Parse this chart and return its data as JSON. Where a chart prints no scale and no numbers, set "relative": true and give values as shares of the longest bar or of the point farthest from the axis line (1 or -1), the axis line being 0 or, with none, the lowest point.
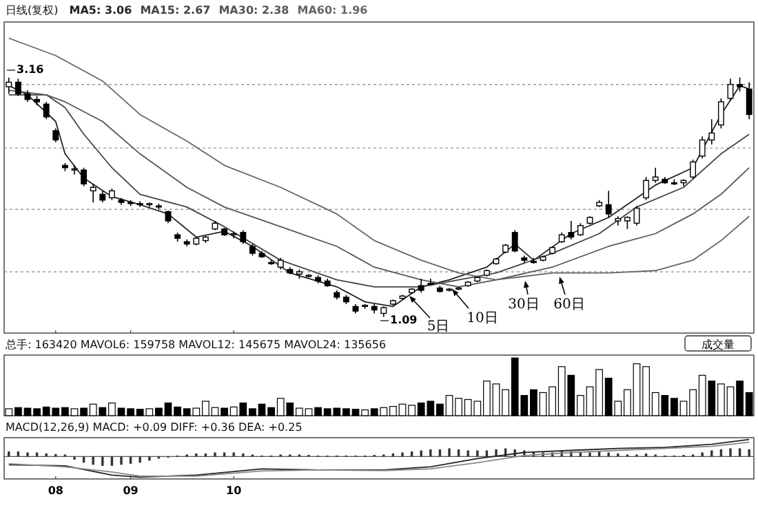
{
  "chart_data": [
    {
      "type": "candlestick",
      "title": "日线(复权)",
      "legend": "top left",
      "tick_labels": false,
      "grid": "y",
      "categories": [
        null,
        null,
        null,
        null,
        null,
        "08",
        null,
        null,
        null,
        null,
        null,
        null,
        null,
        "09",
        null,
        null,
        null,
        null,
        null,
        null,
        null,
        null,
        null,
        null,
        "10",
        null,
        null,
        null,
        null,
        null,
        null,
        null,
        null,
        null,
        null,
        null,
        null,
        null,
        null,
        null,
        null,
        null,
        null,
        null,
        null,
        null,
        null,
        null,
        null,
        null,
        null,
        null,
        null,
        null,
        null,
        null,
        null,
        null,
        null,
        null,
        null,
        null,
        null,
        null,
        null,
        null,
        null,
        null,
        null,
        null,
        null,
        null,
        null,
        null,
        null,
        null,
        null,
        null,
        null,
        null
      ],
      "ylim": [
        0.95,
        3.64
      ],
      "yticks": [
        {
          "value": 3.1,
          "label": null
        },
        {
          "value": 2.55,
          "label": null
        },
        {
          "value": 2.02,
          "label": null
        },
        {
          "value": 1.48,
          "label": null
        }
      ],
      "ohlc": [
        [
          3.08,
          3.16,
          3.02,
          3.12
        ],
        [
          3.12,
          3.15,
          3.0,
          3.02
        ],
        [
          3.02,
          3.05,
          2.95,
          2.97
        ],
        [
          2.97,
          3.0,
          2.92,
          2.95
        ],
        [
          2.93,
          2.95,
          2.8,
          2.82
        ],
        [
          2.7,
          2.72,
          2.6,
          2.62
        ],
        [
          2.4,
          2.42,
          2.35,
          2.38
        ],
        [
          2.36,
          2.4,
          2.32,
          2.37
        ],
        [
          2.36,
          2.38,
          2.22,
          2.24
        ],
        [
          2.18,
          2.24,
          2.08,
          2.21
        ],
        [
          2.15,
          2.18,
          2.08,
          2.1
        ],
        [
          2.12,
          2.2,
          2.1,
          2.18
        ],
        [
          2.1,
          2.12,
          2.06,
          2.08
        ],
        [
          2.08,
          2.1,
          2.05,
          2.07
        ],
        [
          2.07,
          2.09,
          2.04,
          2.06
        ],
        [
          2.06,
          2.08,
          2.04,
          2.07
        ],
        [
          2.05,
          2.07,
          2.02,
          2.04
        ],
        [
          2.0,
          2.01,
          1.9,
          1.92
        ],
        [
          1.8,
          1.82,
          1.74,
          1.77
        ],
        [
          1.74,
          1.76,
          1.7,
          1.72
        ],
        [
          1.72,
          1.78,
          1.71,
          1.77
        ],
        [
          1.75,
          1.79,
          1.73,
          1.78
        ],
        [
          1.85,
          1.92,
          1.84,
          1.9
        ],
        [
          1.85,
          1.86,
          1.79,
          1.8
        ],
        [
          1.8,
          1.83,
          1.77,
          1.81
        ],
        [
          1.82,
          1.84,
          1.72,
          1.74
        ],
        [
          1.7,
          1.72,
          1.62,
          1.64
        ],
        [
          1.64,
          1.66,
          1.6,
          1.61
        ],
        [
          1.56,
          1.58,
          1.54,
          1.55
        ],
        [
          1.52,
          1.6,
          1.5,
          1.58
        ],
        [
          1.5,
          1.52,
          1.46,
          1.47
        ],
        [
          1.46,
          1.5,
          1.42,
          1.48
        ],
        [
          1.44,
          1.46,
          1.43,
          1.45
        ],
        [
          1.43,
          1.45,
          1.38,
          1.4
        ],
        [
          1.4,
          1.42,
          1.35,
          1.36
        ],
        [
          1.3,
          1.32,
          1.24,
          1.26
        ],
        [
          1.26,
          1.28,
          1.2,
          1.22
        ],
        [
          1.18,
          1.2,
          1.12,
          1.14
        ],
        [
          1.18,
          1.2,
          1.16,
          1.19
        ],
        [
          1.18,
          1.2,
          1.12,
          1.15
        ],
        [
          1.12,
          1.18,
          1.09,
          1.17
        ],
        [
          1.2,
          1.24,
          1.19,
          1.23
        ],
        [
          1.25,
          1.28,
          1.24,
          1.27
        ],
        [
          1.3,
          1.34,
          1.29,
          1.33
        ],
        [
          1.36,
          1.42,
          1.3,
          1.32
        ],
        [
          1.38,
          1.42,
          1.36,
          1.37
        ],
        [
          1.34,
          1.36,
          1.3,
          1.31
        ],
        [
          1.32,
          1.34,
          1.31,
          1.33
        ],
        [
          1.33,
          1.35,
          1.32,
          1.34
        ],
        [
          1.36,
          1.4,
          1.35,
          1.39
        ],
        [
          1.4,
          1.44,
          1.39,
          1.43
        ],
        [
          1.45,
          1.5,
          1.44,
          1.49
        ],
        [
          1.55,
          1.6,
          1.54,
          1.59
        ],
        [
          1.65,
          1.72,
          1.64,
          1.71
        ],
        [
          1.82,
          1.84,
          1.65,
          1.66
        ],
        [
          1.6,
          1.62,
          1.56,
          1.58
        ],
        [
          1.57,
          1.6,
          1.55,
          1.56
        ],
        [
          1.58,
          1.62,
          1.57,
          1.61
        ],
        [
          1.64,
          1.7,
          1.63,
          1.69
        ],
        [
          1.74,
          1.82,
          1.73,
          1.8
        ],
        [
          1.82,
          1.92,
          1.76,
          1.78
        ],
        [
          1.8,
          1.9,
          1.79,
          1.88
        ],
        [
          1.9,
          1.96,
          1.89,
          1.95
        ],
        [
          2.05,
          2.1,
          2.04,
          2.08
        ],
        [
          2.06,
          2.18,
          1.95,
          1.98
        ],
        [
          1.92,
          1.96,
          1.88,
          1.94
        ],
        [
          1.92,
          1.96,
          1.85,
          1.95
        ],
        [
          1.9,
          2.05,
          1.88,
          2.03
        ],
        [
          2.12,
          2.3,
          2.1,
          2.27
        ],
        [
          2.27,
          2.38,
          2.25,
          2.3
        ],
        [
          2.28,
          2.3,
          2.24,
          2.25
        ],
        [
          2.25,
          2.28,
          2.23,
          2.24
        ],
        [
          2.25,
          2.28,
          2.22,
          2.27
        ],
        [
          2.3,
          2.45,
          2.28,
          2.43
        ],
        [
          2.48,
          2.65,
          2.46,
          2.62
        ],
        [
          2.62,
          2.8,
          2.58,
          2.68
        ],
        [
          2.75,
          2.98,
          2.72,
          2.95
        ],
        [
          2.98,
          3.15,
          2.96,
          3.1
        ],
        [
          3.1,
          3.16,
          3.04,
          3.08
        ],
        [
          3.06,
          3.12,
          2.8,
          2.84
        ]
      ],
      "series": [
        {
          "name": "MA5: 3.06",
          "type": "line",
          "color": "#222222",
          "values": [
            3.09,
            null,
            3.01,
            null,
            null,
            2.78,
            2.5,
            null,
            2.29,
            null,
            null,
            2.13,
            null,
            null,
            2.06,
            null,
            null,
            1.98,
            null,
            null,
            1.78,
            null,
            null,
            1.83,
            null,
            null,
            1.7,
            null,
            null,
            null,
            1.47,
            null,
            null,
            null,
            null,
            1.35,
            null,
            null,
            1.22,
            null,
            null,
            1.18,
            null,
            null,
            1.35,
            null,
            null,
            1.41,
            null,
            null,
            null,
            1.52,
            null,
            null,
            1.72,
            null,
            1.58,
            null,
            null,
            null,
            1.81,
            null,
            null,
            null,
            1.95,
            null,
            null,
            null,
            null,
            2.23,
            null,
            null,
            null,
            2.38,
            null,
            null,
            2.84,
            null,
            3.09,
            3.06
          ]
        },
        {
          "name": "MA15: 2.67",
          "type": "line",
          "color": "#444444",
          "values": [
            3.01,
            null,
            null,
            null,
            3.01,
            null,
            2.9,
            null,
            2.67,
            null,
            null,
            2.38,
            null,
            null,
            2.15,
            null,
            null,
            null,
            null,
            2.04,
            null,
            null,
            null,
            1.87,
            null,
            null,
            null,
            null,
            null,
            1.58,
            null,
            null,
            null,
            null,
            null,
            1.41,
            null,
            null,
            null,
            1.35,
            null,
            null,
            null,
            null,
            1.35,
            null,
            null,
            null,
            1.41,
            null,
            null,
            null,
            1.47,
            null,
            null,
            null,
            null,
            null,
            1.64,
            null,
            null,
            null,
            null,
            1.81,
            null,
            null,
            null,
            2.04,
            null,
            null,
            null,
            null,
            2.21,
            null,
            null,
            null,
            2.5,
            null,
            null,
            2.67
          ]
        },
        {
          "name": "MA30: 2.38",
          "type": "line",
          "color": "#555555",
          "values": [
            3.05,
            null,
            null,
            null,
            3.01,
            null,
            2.95,
            null,
            null,
            null,
            2.78,
            null,
            null,
            null,
            2.5,
            null,
            null,
            null,
            null,
            2.21,
            null,
            null,
            null,
            2.04,
            null,
            null,
            null,
            null,
            null,
            1.87,
            null,
            null,
            null,
            null,
            null,
            1.7,
            null,
            null,
            null,
            1.52,
            null,
            null,
            null,
            null,
            1.41,
            null,
            null,
            null,
            1.35,
            null,
            null,
            null,
            1.41,
            null,
            null,
            null,
            null,
            null,
            1.52,
            null,
            null,
            null,
            null,
            null,
            1.7,
            null,
            null,
            null,
            null,
            1.81,
            null,
            null,
            null,
            1.98,
            null,
            null,
            2.15,
            null,
            null,
            2.38
          ]
        },
        {
          "name": "MA60: 1.96",
          "type": "line",
          "color": "#666666",
          "values": [
            3.5,
            null,
            null,
            null,
            null,
            3.35,
            null,
            null,
            null,
            null,
            3.13,
            null,
            null,
            null,
            2.84,
            null,
            null,
            null,
            null,
            2.61,
            null,
            null,
            null,
            2.4,
            null,
            null,
            null,
            null,
            null,
            2.21,
            null,
            null,
            null,
            null,
            null,
            1.98,
            null,
            null,
            null,
            1.75,
            null,
            null,
            null,
            null,
            1.58,
            null,
            null,
            null,
            1.47,
            null,
            null,
            null,
            1.41,
            null,
            null,
            null,
            null,
            null,
            1.47,
            null,
            null,
            null,
            null,
            null,
            1.47,
            null,
            null,
            null,
            null,
            1.49,
            null,
            null,
            null,
            1.58,
            null,
            null,
            1.75,
            null,
            null,
            1.96
          ]
        }
      ],
      "annotations": [
        "3.16",
        "1.09",
        "5日",
        "10日",
        "30日",
        "60日"
      ]
    },
    {
      "type": "bar",
      "relative": true,
      "tick_labels": false,
      "title": "总手: 163420 MAVOL6: 159758 MAVOL12: 145675 MAVOL24: 135656",
      "annotations": [
        "成交量"
      ],
      "categories": [
        null,
        null,
        null,
        null,
        null,
        "08",
        null,
        null,
        null,
        null,
        null,
        null,
        null,
        "09",
        null,
        null,
        null,
        null,
        null,
        null,
        null,
        null,
        null,
        null,
        "10",
        null,
        null,
        null,
        null,
        null,
        null,
        null,
        null,
        null,
        null,
        null,
        null,
        null,
        null,
        null,
        null,
        null,
        null,
        null,
        null,
        null,
        null,
        null,
        null,
        null,
        null,
        null,
        null,
        null,
        null,
        null,
        null,
        null,
        null,
        null,
        null,
        null,
        null,
        null,
        null,
        null,
        null,
        null,
        null,
        null,
        null,
        null,
        null,
        null,
        null,
        null,
        null,
        null,
        null,
        null
      ],
      "values": [
        0.12,
        0.14,
        0.13,
        0.12,
        0.15,
        0.13,
        0.14,
        0.12,
        0.13,
        0.2,
        0.14,
        0.22,
        0.13,
        0.12,
        0.11,
        0.12,
        0.13,
        0.22,
        0.15,
        0.12,
        0.13,
        0.25,
        0.14,
        0.13,
        0.15,
        0.22,
        0.12,
        0.2,
        0.14,
        0.3,
        0.22,
        0.13,
        0.12,
        0.14,
        0.12,
        0.13,
        0.12,
        0.11,
        0.1,
        0.12,
        0.14,
        0.16,
        0.2,
        0.18,
        0.22,
        0.25,
        0.2,
        0.35,
        0.3,
        0.28,
        0.25,
        0.6,
        0.55,
        0.45,
        1,
        0.35,
        0.45,
        0.4,
        0.5,
        0.85,
        0.7,
        0.35,
        0.5,
        0.8,
        0.65,
        0.25,
        0.45,
        0.9,
        0.85,
        0.4,
        0.35,
        0.3,
        0.25,
        0.45,
        0.7,
        0.6,
        0.55,
        0.5,
        0.6,
        0.4
      ],
      "colors": [
        "#ffffff",
        "#000000",
        "#000000",
        "#000000",
        "#000000",
        "#000000",
        "#000000",
        "#ffffff",
        "#000000",
        "#ffffff",
        "#000000",
        "#ffffff",
        "#000000",
        "#000000",
        "#000000",
        "#ffffff",
        "#000000",
        "#000000",
        "#000000",
        "#000000",
        "#ffffff",
        "#ffffff",
        "#ffffff",
        "#000000",
        "#ffffff",
        "#000000",
        "#000000",
        "#000000",
        "#000000",
        "#ffffff",
        "#000000",
        "#ffffff",
        "#ffffff",
        "#000000",
        "#000000",
        "#000000",
        "#000000",
        "#000000",
        "#ffffff",
        "#000000",
        "#ffffff",
        "#ffffff",
        "#ffffff",
        "#ffffff",
        "#000000",
        "#000000",
        "#000000",
        "#ffffff",
        "#ffffff",
        "#ffffff",
        "#ffffff",
        "#ffffff",
        "#ffffff",
        "#ffffff",
        "#000000",
        "#000000",
        "#000000",
        "#ffffff",
        "#ffffff",
        "#ffffff",
        "#000000",
        "#ffffff",
        "#ffffff",
        "#ffffff",
        "#000000",
        "#ffffff",
        "#ffffff",
        "#ffffff",
        "#ffffff",
        "#ffffff",
        "#000000",
        "#000000",
        "#ffffff",
        "#ffffff",
        "#ffffff",
        "#000000",
        "#ffffff",
        "#ffffff",
        "#000000",
        "#000000"
      ]
    },
    {
      "type": "bar",
      "relative": true,
      "tick_labels": "x",
      "title": "MACD(12,26,9) MACD: +0.09 DIFF: +0.36 DEA: +0.25",
      "categories": [
        null,
        null,
        null,
        null,
        null,
        "08",
        null,
        null,
        null,
        null,
        null,
        null,
        null,
        "09",
        null,
        null,
        null,
        null,
        null,
        null,
        null,
        null,
        null,
        null,
        "10",
        null,
        null,
        null,
        null,
        null,
        null,
        null,
        null,
        null,
        null,
        null,
        null,
        null,
        null,
        null,
        null,
        null,
        null,
        null,
        null,
        null,
        null,
        null,
        null,
        null,
        null,
        null,
        null,
        null,
        null,
        null,
        null,
        null,
        null,
        null,
        null,
        null,
        null,
        null,
        null,
        null,
        null,
        null,
        null,
        null,
        null,
        null,
        null,
        null,
        null,
        null,
        null,
        null,
        null,
        null
      ],
      "series": [
        {
          "type": "bar",
          "color": "#333333",
          "values": [
            0.25,
            0.25,
            0.2,
            0.2,
            0.15,
            0.12,
            0.1,
            -0.15,
            -0.3,
            -0.4,
            -0.45,
            -0.45,
            -0.4,
            -0.35,
            -0.3,
            -0.2,
            -0.1,
            -0.05,
            0.05,
            0.1,
            0.15,
            0.15,
            0.2,
            0.2,
            0.2,
            0.15,
            0.1,
            0.05,
            0.05,
            0.1,
            0.1,
            0.1,
            0.08,
            0.05,
            0.05,
            0.05,
            0.05,
            0.05,
            0.05,
            0.08,
            0.1,
            0.15,
            0.2,
            0.25,
            0.3,
            0.35,
            0.35,
            0.4,
            0.35,
            0.3,
            0.3,
            0.3,
            0.35,
            0.4,
            0.35,
            0.3,
            0.25,
            0.2,
            0.2,
            0.25,
            0.25,
            0.2,
            0.2,
            0.25,
            0.2,
            0.15,
            0.1,
            0.1,
            0.15,
            0.1,
            0.05,
            0.05,
            0.08,
            0.1,
            0.2,
            0.3,
            0.35,
            0.4,
            0.4,
            0.35
          ]
        },
        {
          "type": "line",
          "color": "#222222",
          "values": [
            -0.4,
            null,
            null,
            null,
            null,
            null,
            -0.45,
            null,
            null,
            null,
            null,
            -0.9,
            null,
            null,
            -1,
            null,
            null,
            null,
            null,
            null,
            -0.9,
            null,
            null,
            null,
            null,
            null,
            null,
            -0.6,
            null,
            null,
            null,
            null,
            null,
            -0.65,
            null,
            null,
            null,
            null,
            null,
            null,
            -0.65,
            null,
            null,
            null,
            null,
            -0.5,
            null,
            null,
            null,
            null,
            -0.1,
            null,
            null,
            null,
            null,
            0.2,
            null,
            null,
            null,
            null,
            0.3,
            null,
            null,
            null,
            null,
            0.4,
            null,
            null,
            null,
            null,
            0.45,
            null,
            null,
            null,
            null,
            0.6,
            null,
            null,
            null,
            0.83
          ]
        },
        {
          "type": "line",
          "color": "#888888",
          "values": [
            -0.35,
            null,
            null,
            null,
            null,
            null,
            -0.5,
            null,
            null,
            null,
            null,
            -0.75,
            null,
            null,
            -0.95,
            null,
            null,
            null,
            null,
            null,
            -0.95,
            null,
            null,
            null,
            null,
            null,
            null,
            -0.7,
            null,
            null,
            null,
            null,
            null,
            -0.65,
            null,
            null,
            null,
            null,
            null,
            null,
            -0.68,
            null,
            null,
            null,
            null,
            -0.6,
            null,
            null,
            null,
            null,
            -0.3,
            null,
            null,
            null,
            null,
            0.05,
            null,
            null,
            null,
            null,
            0.2,
            null,
            null,
            null,
            null,
            0.3,
            null,
            null,
            null,
            null,
            0.4,
            null,
            null,
            null,
            null,
            0.5,
            null,
            null,
            null,
            0.7
          ]
        }
      ]
    }
  ]
}
